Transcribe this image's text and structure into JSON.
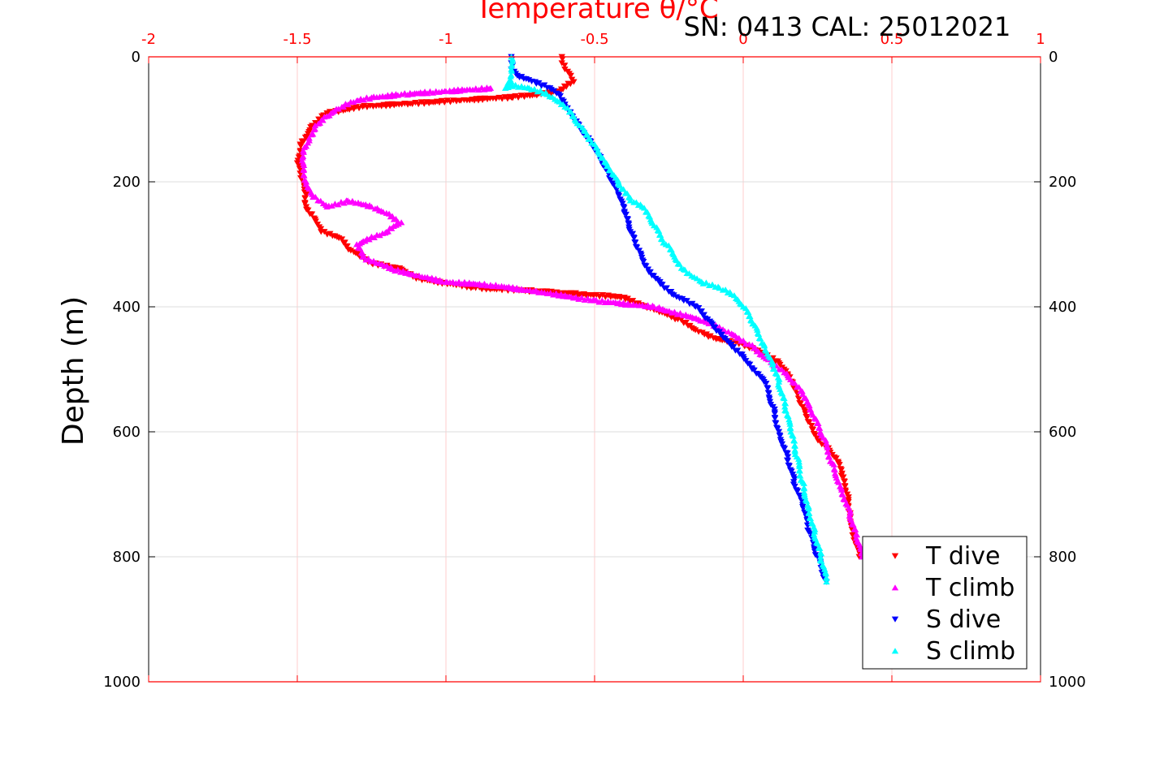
{
  "chart_data": {
    "type": "scatter",
    "title": "Temperature θ/°C",
    "subtitle": "SN: 0413  CAL: 25012021",
    "ylabel": "Depth (m)",
    "xlabel": "",
    "xlim": [
      -2,
      1
    ],
    "ylim": [
      0,
      1000
    ],
    "y_reversed": true,
    "x_axis_position": "top",
    "grid": true,
    "legend_position": "bottom-right",
    "x_ticks": [
      -2,
      -1.5,
      -1,
      -0.5,
      0,
      0.5,
      1
    ],
    "x_tick_labels": [
      "-2",
      "-1.5",
      "-1",
      "-0.5",
      "0",
      "0.5",
      "1"
    ],
    "y_ticks": [
      0,
      200,
      400,
      600,
      800,
      1000
    ],
    "y_tick_labels": [
      "0",
      "200",
      "400",
      "600",
      "800",
      "1000"
    ],
    "colors": {
      "axis_top": "#ff0000",
      "axis": "#000000",
      "grid_x": "#ffcccc",
      "grid_y": "#dddddd"
    },
    "series": [
      {
        "name": "T dive",
        "color": "#ff0000",
        "marker": "triangle-down",
        "x": [
          -0.61,
          -0.61,
          -0.6,
          -0.58,
          -0.57,
          -0.62,
          -0.68,
          -0.78,
          -0.95,
          -1.12,
          -1.28,
          -1.4,
          -1.45,
          -1.49,
          -1.5,
          -1.48,
          -1.47,
          -1.47,
          -1.44,
          -1.42,
          -1.36,
          -1.32,
          -1.28,
          -1.25,
          -1.15,
          -1.1,
          -0.9,
          -0.7,
          -0.55,
          -0.4,
          -0.33,
          -0.3,
          -0.22,
          -0.15,
          -0.1,
          0.0,
          0.05,
          0.12,
          0.15,
          0.17,
          0.2,
          0.23,
          0.25,
          0.29,
          0.32,
          0.33,
          0.35,
          0.36,
          0.37,
          0.39
        ],
        "y": [
          0,
          10,
          20,
          30,
          40,
          55,
          60,
          65,
          70,
          75,
          80,
          90,
          110,
          140,
          170,
          200,
          220,
          240,
          260,
          280,
          290,
          310,
          320,
          330,
          340,
          355,
          370,
          375,
          380,
          385,
          400,
          405,
          420,
          440,
          450,
          460,
          470,
          490,
          510,
          530,
          560,
          590,
          610,
          630,
          650,
          670,
          700,
          730,
          760,
          800
        ]
      },
      {
        "name": "T climb",
        "color": "#ff00ff",
        "marker": "triangle-up",
        "x": [
          0.4,
          0.38,
          0.36,
          0.33,
          0.3,
          0.27,
          0.23,
          0.2,
          0.15,
          0.1,
          0.02,
          -0.05,
          -0.15,
          -0.3,
          -0.5,
          -0.7,
          -0.85,
          -1.0,
          -1.1,
          -1.18,
          -1.28,
          -1.3,
          -1.2,
          -1.15,
          -1.2,
          -1.25,
          -1.33,
          -1.4,
          -1.45,
          -1.47,
          -1.48,
          -1.48,
          -1.46,
          -1.44,
          -1.4,
          -1.35,
          -1.3,
          -1.25,
          -1.15,
          -1.0,
          -0.85
        ],
        "y": [
          800,
          770,
          730,
          690,
          650,
          610,
          570,
          540,
          510,
          490,
          460,
          440,
          420,
          400,
          390,
          375,
          365,
          360,
          350,
          340,
          320,
          300,
          280,
          265,
          250,
          240,
          230,
          240,
          220,
          200,
          170,
          150,
          130,
          110,
          95,
          80,
          70,
          65,
          60,
          55,
          50
        ]
      },
      {
        "name": "S dive",
        "color": "#0000ff",
        "marker": "triangle-down",
        "x": [
          -0.78,
          -0.78,
          -0.78,
          -0.76,
          -0.7,
          -0.65,
          -0.62,
          -0.6,
          -0.57,
          -0.52,
          -0.48,
          -0.45,
          -0.42,
          -0.4,
          -0.38,
          -0.35,
          -0.32,
          -0.28,
          -0.24,
          -0.2,
          -0.16,
          -0.12,
          -0.08,
          -0.04,
          0.0,
          0.03,
          0.07,
          0.1,
          0.12,
          0.15,
          0.17,
          0.2,
          0.22,
          0.25,
          0.28
        ],
        "y": [
          0,
          10,
          20,
          30,
          40,
          50,
          60,
          80,
          100,
          130,
          160,
          190,
          220,
          250,
          280,
          310,
          340,
          360,
          380,
          390,
          400,
          420,
          440,
          460,
          480,
          500,
          520,
          560,
          600,
          640,
          680,
          720,
          760,
          800,
          840
        ]
      },
      {
        "name": "S climb",
        "color": "#00ffff",
        "marker": "triangle-up",
        "x": [
          0.28,
          0.26,
          0.24,
          0.22,
          0.2,
          0.18,
          0.16,
          0.14,
          0.12,
          0.1,
          0.07,
          0.04,
          0.0,
          -0.04,
          -0.08,
          -0.14,
          -0.2,
          -0.26,
          -0.3,
          -0.34,
          -0.38,
          -0.42,
          -0.46,
          -0.5,
          -0.55,
          -0.6,
          -0.66,
          -0.72,
          -0.78,
          -0.8,
          -0.78,
          -0.78,
          -0.78
        ],
        "y": [
          840,
          800,
          760,
          720,
          680,
          640,
          600,
          560,
          520,
          490,
          460,
          430,
          400,
          380,
          370,
          360,
          340,
          300,
          270,
          240,
          230,
          200,
          170,
          140,
          110,
          80,
          60,
          50,
          45,
          50,
          40,
          20,
          0
        ]
      }
    ]
  }
}
